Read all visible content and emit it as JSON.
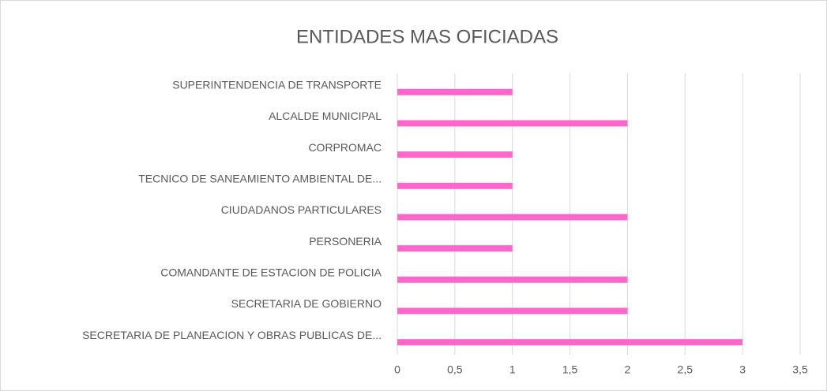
{
  "chart_data": {
    "type": "bar",
    "orientation": "horizontal",
    "title": "ENTIDADES MAS OFICIADAS",
    "categories": [
      "SUPERINTENDENCIA DE TRANSPORTE",
      "ALCALDE MUNICIPAL",
      "CORPROMAC",
      "TECNICO DE SANEAMIENTO AMBIENTAL DE...",
      "CIUDADANOS PARTICULARES",
      "PERSONERIA",
      "COMANDANTE DE ESTACION DE POLICIA",
      "SECRETARIA DE GOBIERNO",
      "SECRETARIA DE PLANEACION Y OBRAS PUBLICAS DE..."
    ],
    "values": [
      1,
      2,
      1,
      1,
      2,
      1,
      2,
      2,
      3
    ],
    "color": "#ff66cc",
    "xlim": [
      0,
      3.5
    ],
    "xticks": [
      0,
      {
        "value": 0.5,
        "label": "0,5"
      },
      1,
      {
        "value": 1.5,
        "label": "1,5"
      },
      2,
      {
        "value": 2.5,
        "label": "2,5"
      },
      3,
      {
        "value": 3.5,
        "label": "3,5"
      }
    ],
    "grid": true
  }
}
